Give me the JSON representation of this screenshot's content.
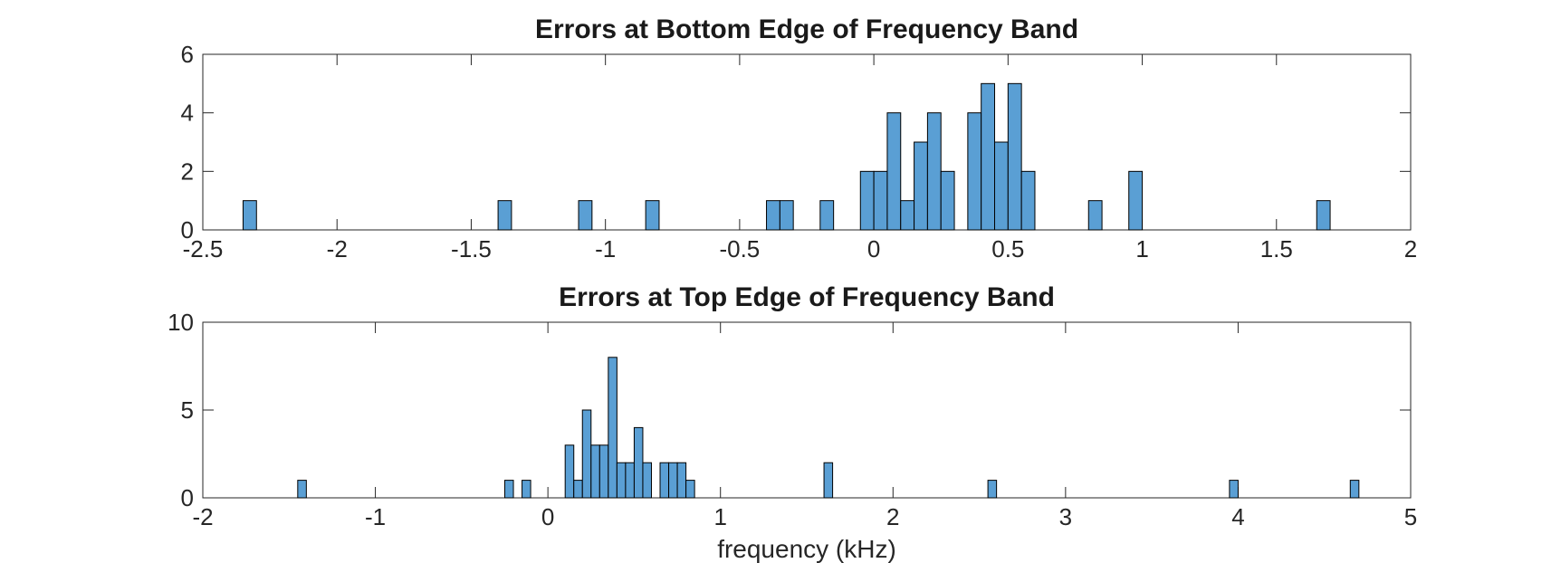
{
  "chart_data": [
    {
      "type": "bar",
      "subtype": "histogram",
      "title": "Errors at Bottom Edge of Frequency Band",
      "xlabel": "",
      "ylabel": "",
      "xlim": [
        -2.5,
        2
      ],
      "ylim": [
        0,
        6
      ],
      "xticks": [
        -2.5,
        -2,
        -1.5,
        -1,
        -0.5,
        0,
        0.5,
        1,
        1.5,
        2
      ],
      "xtick_labels": [
        "-2.5",
        "-2",
        "-1.5",
        "-1",
        "-0.5",
        "0",
        "0.5",
        "1",
        "1.5",
        "2"
      ],
      "yticks": [
        0,
        2,
        4,
        6
      ],
      "ytick_labels": [
        "0",
        "2",
        "4",
        "6"
      ],
      "bin_width": 0.05,
      "bins": [
        {
          "x0": -2.35,
          "count": 1
        },
        {
          "x0": -1.4,
          "count": 1
        },
        {
          "x0": -1.1,
          "count": 1
        },
        {
          "x0": -0.85,
          "count": 1
        },
        {
          "x0": -0.4,
          "count": 1
        },
        {
          "x0": -0.35,
          "count": 1
        },
        {
          "x0": -0.2,
          "count": 1
        },
        {
          "x0": -0.05,
          "count": 2
        },
        {
          "x0": 0.0,
          "count": 2
        },
        {
          "x0": 0.05,
          "count": 4
        },
        {
          "x0": 0.1,
          "count": 1
        },
        {
          "x0": 0.15,
          "count": 3
        },
        {
          "x0": 0.2,
          "count": 4
        },
        {
          "x0": 0.25,
          "count": 2
        },
        {
          "x0": 0.35,
          "count": 4
        },
        {
          "x0": 0.4,
          "count": 5
        },
        {
          "x0": 0.45,
          "count": 3
        },
        {
          "x0": 0.5,
          "count": 5
        },
        {
          "x0": 0.55,
          "count": 2
        },
        {
          "x0": 0.8,
          "count": 1
        },
        {
          "x0": 0.95,
          "count": 2
        },
        {
          "x0": 1.65,
          "count": 1
        }
      ],
      "bar_color": "#5a9fd4",
      "grid": false
    },
    {
      "type": "bar",
      "subtype": "histogram",
      "title": "Errors at Top Edge of Frequency Band",
      "xlabel": "frequency (kHz)",
      "ylabel": "",
      "xlim": [
        -2,
        5
      ],
      "ylim": [
        0,
        10
      ],
      "xticks": [
        -2,
        -1,
        0,
        1,
        2,
        3,
        4,
        5
      ],
      "xtick_labels": [
        "-2",
        "-1",
        "0",
        "1",
        "2",
        "3",
        "4",
        "5"
      ],
      "yticks": [
        0,
        5,
        10
      ],
      "ytick_labels": [
        "0",
        "5",
        "10"
      ],
      "bin_width": 0.05,
      "bins": [
        {
          "x0": -1.45,
          "count": 1
        },
        {
          "x0": -0.25,
          "count": 1
        },
        {
          "x0": -0.15,
          "count": 1
        },
        {
          "x0": 0.1,
          "count": 3
        },
        {
          "x0": 0.15,
          "count": 1
        },
        {
          "x0": 0.2,
          "count": 5
        },
        {
          "x0": 0.25,
          "count": 3
        },
        {
          "x0": 0.3,
          "count": 3
        },
        {
          "x0": 0.35,
          "count": 8
        },
        {
          "x0": 0.4,
          "count": 2
        },
        {
          "x0": 0.45,
          "count": 2
        },
        {
          "x0": 0.5,
          "count": 4
        },
        {
          "x0": 0.55,
          "count": 2
        },
        {
          "x0": 0.65,
          "count": 2
        },
        {
          "x0": 0.7,
          "count": 2
        },
        {
          "x0": 0.75,
          "count": 2
        },
        {
          "x0": 0.8,
          "count": 1
        },
        {
          "x0": 1.6,
          "count": 2
        },
        {
          "x0": 2.55,
          "count": 1
        },
        {
          "x0": 3.95,
          "count": 1
        },
        {
          "x0": 4.65,
          "count": 1
        }
      ],
      "bar_color": "#5a9fd4",
      "grid": false
    }
  ]
}
